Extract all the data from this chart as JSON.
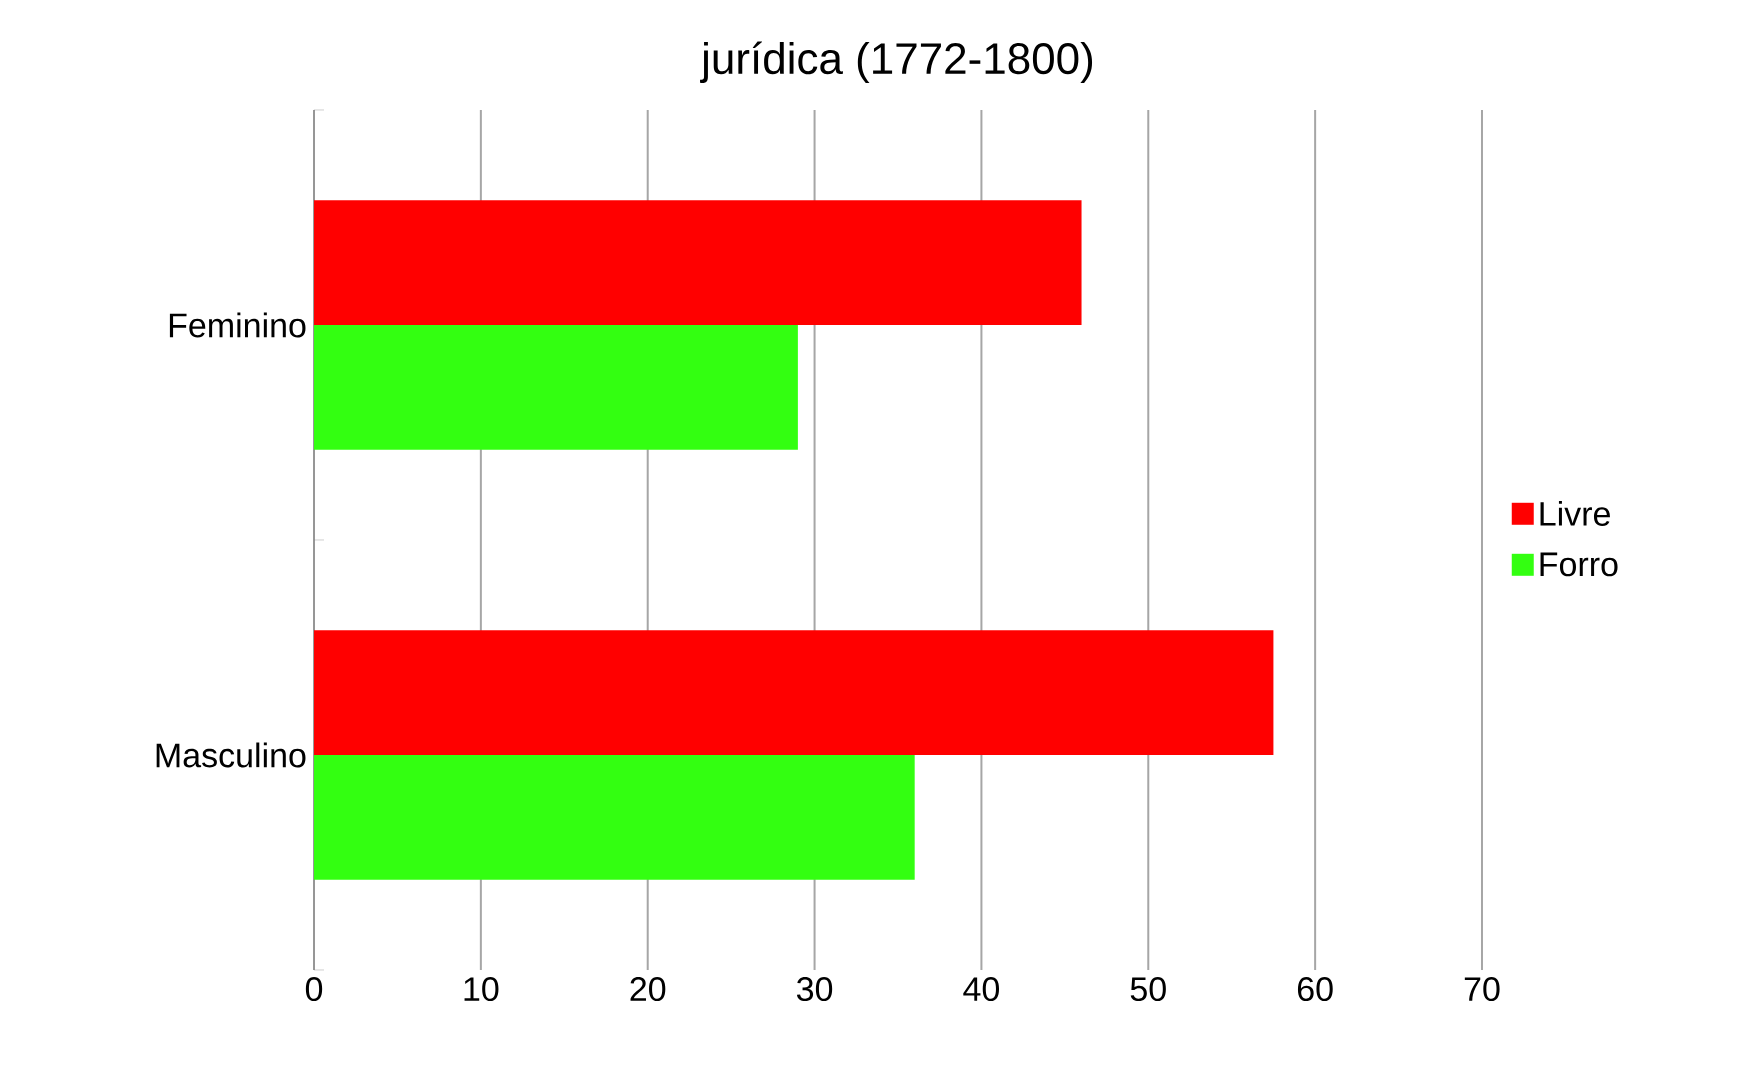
{
  "chart_data": {
    "type": "bar",
    "orientation": "horizontal",
    "title": "jurídica (1772-1800)",
    "categories": [
      "Feminino",
      "Masculino"
    ],
    "series": [
      {
        "name": "Livre",
        "color": "#ff0000",
        "values": [
          46,
          57.5
        ]
      },
      {
        "name": "Forro",
        "color": "#33ff11",
        "values": [
          29,
          36
        ]
      }
    ],
    "xlim": [
      0,
      70
    ],
    "xticks": [
      0,
      10,
      20,
      30,
      40,
      50,
      60,
      70
    ],
    "grid": "x",
    "legend": "right"
  }
}
